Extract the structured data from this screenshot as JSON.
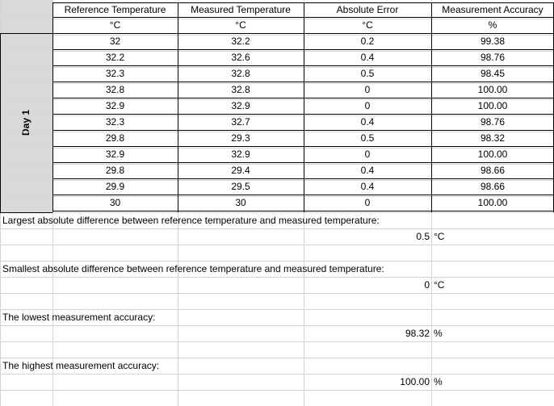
{
  "headers": [
    "Reference Temperature",
    "Measured Temperature",
    "Absolute Error",
    "Measurement Accuracy"
  ],
  "units": [
    "°C",
    "°C",
    "°C",
    "%"
  ],
  "day_label": "Day 1",
  "rows": [
    [
      "32",
      "32.2",
      "0.2",
      "99.38"
    ],
    [
      "32.2",
      "32.6",
      "0.4",
      "98.76"
    ],
    [
      "32.3",
      "32.8",
      "0.5",
      "98.45"
    ],
    [
      "32.8",
      "32.8",
      "0",
      "100.00"
    ],
    [
      "32.9",
      "32.9",
      "0",
      "100.00"
    ],
    [
      "32.3",
      "32.7",
      "0.4",
      "98.76"
    ],
    [
      "29.8",
      "29.3",
      "0.5",
      "98.32"
    ],
    [
      "32.9",
      "32.9",
      "0",
      "100.00"
    ],
    [
      "29.8",
      "29.4",
      "0.4",
      "98.66"
    ],
    [
      "29.9",
      "29.5",
      "0.4",
      "98.66"
    ],
    [
      "30",
      "30",
      "0",
      "100.00"
    ]
  ],
  "summary": [
    {
      "label": "Largest absolute difference between reference temperature and measured temperature:",
      "value": "0.5",
      "unit": "°C"
    },
    {
      "label": "Smallest absolute difference between reference temperature and measured temperature:",
      "value": "0",
      "unit": "°C"
    },
    {
      "label": "The lowest measurement accuracy:",
      "value": "98.32",
      "unit": "%"
    },
    {
      "label": "The highest measurement accuracy:",
      "value": "100.00",
      "unit": "%"
    }
  ]
}
